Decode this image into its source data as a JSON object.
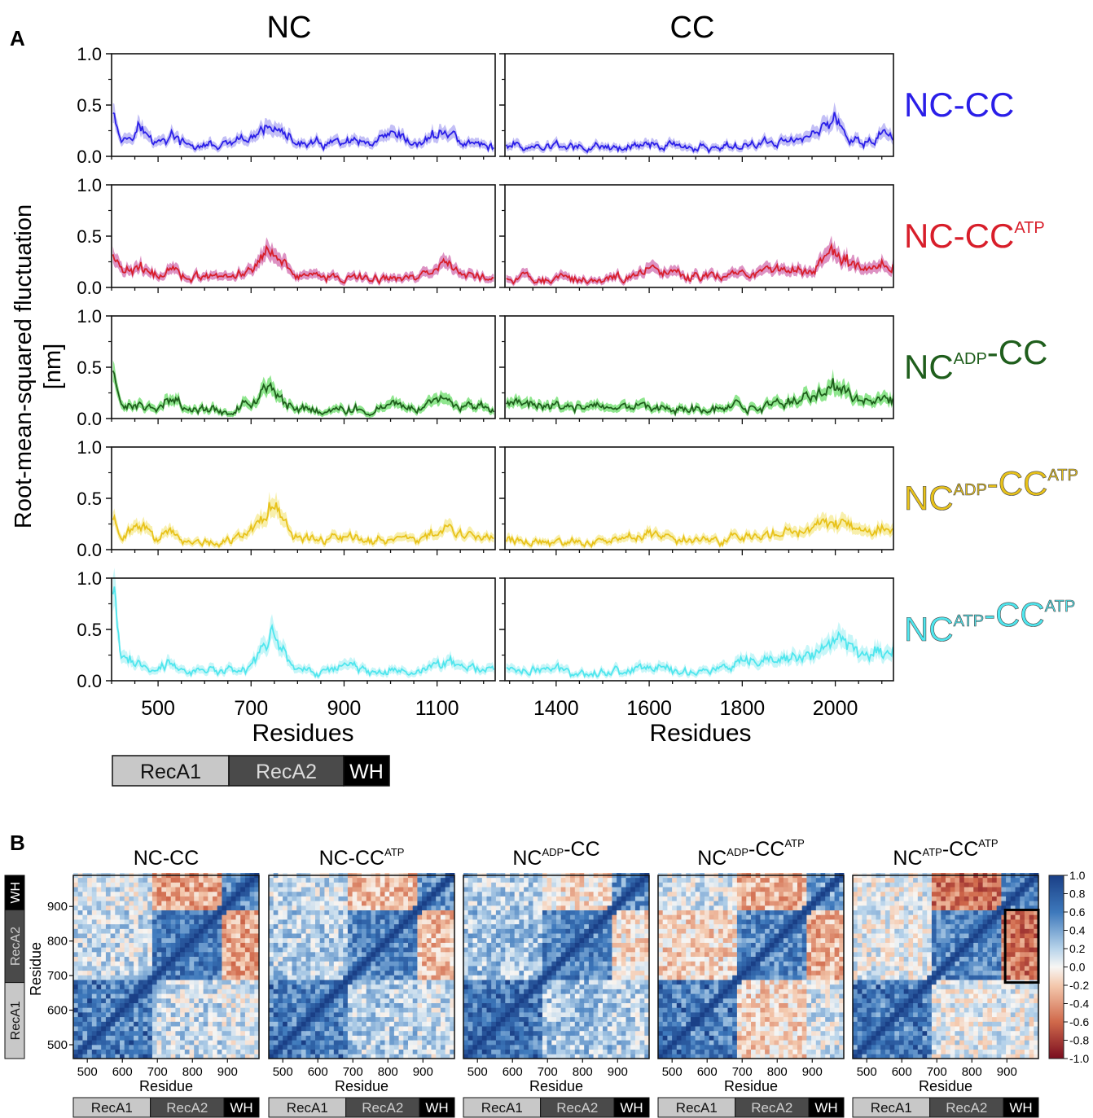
{
  "panel_a": {
    "letter": "A",
    "col_titles": [
      "NC",
      "CC"
    ],
    "ylabel_line1": "Root-mean-squared fluctuation",
    "ylabel_line2": "[nm]",
    "xlabel": "Residues",
    "y_ticks": [
      "1.0",
      "0.5",
      "0.0"
    ],
    "x_ticks_nc": [
      "500",
      "700",
      "900",
      "1100"
    ],
    "x_ticks_cc": [
      "1400",
      "1600",
      "1800",
      "2000"
    ],
    "rows": [
      {
        "base": "NC",
        "sup1": "",
        "mid": "-CC",
        "sup2": "",
        "color": "#2a1ee8",
        "band": "#b9b4f4"
      },
      {
        "base": "NC",
        "sup1": "",
        "mid": "-CC",
        "sup2": "ATP",
        "color": "#d81e2a",
        "band": "#d77fb8"
      },
      {
        "base": "NC",
        "sup1": "ADP",
        "mid": "-CC",
        "sup2": "",
        "color": "#1f5e1c",
        "band": "#7be27a"
      },
      {
        "base": "NC",
        "sup1": "ADP",
        "mid": "-CC",
        "sup2": "ATP",
        "color": "#e8c21a",
        "band": "#f7ec9e"
      },
      {
        "base": "NC",
        "sup1": "ATP",
        "mid": "-CC",
        "sup2": "ATP",
        "color": "#4fe6ee",
        "band": "#bdf5f7"
      }
    ],
    "domain_bar": [
      "RecA1",
      "RecA2",
      "WH"
    ]
  },
  "panel_b": {
    "letter": "B",
    "titles": [
      {
        "base": "NC",
        "sup1": "",
        "mid": "-CC",
        "sup2": ""
      },
      {
        "base": "NC",
        "sup1": "",
        "mid": "-CC",
        "sup2": "ATP"
      },
      {
        "base": "NC",
        "sup1": "ADP",
        "mid": "-CC",
        "sup2": ""
      },
      {
        "base": "NC",
        "sup1": "ADP",
        "mid": "-CC",
        "sup2": "ATP"
      },
      {
        "base": "NC",
        "sup1": "ATP",
        "mid": "-CC",
        "sup2": "ATP"
      }
    ],
    "xlabel": "Residue",
    "ylabel": "Residue",
    "ticks": [
      "500",
      "600",
      "700",
      "800",
      "900"
    ],
    "colorbar_ticks": [
      "1.0",
      "0.8",
      "0.6",
      "0.4",
      "0.2",
      "0.0",
      "-0.2",
      "-0.4",
      "-0.6",
      "-0.8",
      "-1.0"
    ],
    "domain_bar": [
      "RecA1",
      "RecA2",
      "WH"
    ],
    "side_bar": [
      "WH",
      "RecA2",
      "RecA1"
    ]
  },
  "chart_data": [
    {
      "type": "line",
      "panel": "A-NC",
      "xlabel": "Residues",
      "ylabel": "Root-mean-squared fluctuation [nm]",
      "xlim": [
        400,
        1225
      ],
      "ylim": [
        0,
        1.0
      ],
      "x": [
        405,
        420,
        460,
        490,
        530,
        560,
        600,
        650,
        700,
        745,
        790,
        850,
        910,
        960,
        1010,
        1050,
        1115,
        1160,
        1220
      ],
      "series": [
        {
          "name": "NC-CC",
          "values": [
            0.5,
            0.15,
            0.3,
            0.12,
            0.2,
            0.1,
            0.1,
            0.1,
            0.16,
            0.31,
            0.13,
            0.11,
            0.13,
            0.1,
            0.2,
            0.1,
            0.25,
            0.12,
            0.1
          ]
        },
        {
          "name": "NC-CCATP",
          "values": [
            0.3,
            0.16,
            0.18,
            0.12,
            0.17,
            0.1,
            0.1,
            0.09,
            0.17,
            0.4,
            0.13,
            0.1,
            0.1,
            0.08,
            0.1,
            0.09,
            0.22,
            0.12,
            0.1
          ]
        },
        {
          "name": "NCADP-CC",
          "values": [
            0.45,
            0.1,
            0.12,
            0.09,
            0.24,
            0.08,
            0.08,
            0.08,
            0.15,
            0.3,
            0.12,
            0.08,
            0.1,
            0.1,
            0.14,
            0.1,
            0.18,
            0.1,
            0.08
          ]
        },
        {
          "name": "NCADP-CCATP",
          "values": [
            0.3,
            0.15,
            0.22,
            0.12,
            0.2,
            0.1,
            0.09,
            0.1,
            0.18,
            0.48,
            0.14,
            0.1,
            0.11,
            0.1,
            0.13,
            0.1,
            0.2,
            0.12,
            0.1
          ]
        },
        {
          "name": "NCATP-CCATP",
          "values": [
            0.9,
            0.25,
            0.15,
            0.12,
            0.2,
            0.1,
            0.1,
            0.1,
            0.16,
            0.45,
            0.12,
            0.09,
            0.16,
            0.1,
            0.12,
            0.1,
            0.17,
            0.12,
            0.1
          ]
        }
      ]
    },
    {
      "type": "line",
      "panel": "A-CC",
      "xlabel": "Residues",
      "ylabel": "Root-mean-squared fluctuation [nm]",
      "xlim": [
        1290,
        2125
      ],
      "ylim": [
        0,
        1.0
      ],
      "x": [
        1295,
        1350,
        1400,
        1450,
        1500,
        1550,
        1600,
        1650,
        1700,
        1750,
        1800,
        1850,
        1900,
        1950,
        1995,
        2030,
        2060,
        2090,
        2120
      ],
      "series": [
        {
          "name": "NC-CC",
          "values": [
            0.12,
            0.09,
            0.1,
            0.09,
            0.08,
            0.09,
            0.14,
            0.1,
            0.09,
            0.09,
            0.11,
            0.13,
            0.16,
            0.2,
            0.38,
            0.2,
            0.12,
            0.2,
            0.2
          ]
        },
        {
          "name": "NC-CCATP",
          "values": [
            0.1,
            0.08,
            0.09,
            0.08,
            0.09,
            0.1,
            0.17,
            0.12,
            0.12,
            0.11,
            0.16,
            0.13,
            0.18,
            0.2,
            0.35,
            0.25,
            0.17,
            0.2,
            0.2
          ]
        },
        {
          "name": "NCADP-CC",
          "values": [
            0.16,
            0.11,
            0.12,
            0.1,
            0.1,
            0.1,
            0.15,
            0.1,
            0.1,
            0.09,
            0.12,
            0.12,
            0.16,
            0.2,
            0.34,
            0.22,
            0.15,
            0.18,
            0.18
          ]
        },
        {
          "name": "NCADP-CCATP",
          "values": [
            0.1,
            0.08,
            0.08,
            0.08,
            0.08,
            0.09,
            0.15,
            0.1,
            0.09,
            0.09,
            0.12,
            0.13,
            0.15,
            0.2,
            0.3,
            0.22,
            0.15,
            0.2,
            0.2
          ]
        },
        {
          "name": "NCATP-CCATP",
          "values": [
            0.12,
            0.1,
            0.11,
            0.09,
            0.09,
            0.1,
            0.16,
            0.09,
            0.1,
            0.11,
            0.15,
            0.18,
            0.22,
            0.24,
            0.4,
            0.35,
            0.25,
            0.3,
            0.3
          ]
        }
      ]
    },
    {
      "type": "heatmap",
      "panel": "B",
      "xlabel": "Residue",
      "ylabel": "Residue",
      "xlim": [
        460,
        990
      ],
      "ylim": [
        460,
        990
      ],
      "colorbar_range": [
        -1.0,
        1.0
      ],
      "domains": [
        {
          "name": "RecA1",
          "start": 460,
          "end": 680
        },
        {
          "name": "RecA2",
          "start": 680,
          "end": 890
        },
        {
          "name": "WH",
          "start": 890,
          "end": 990
        }
      ],
      "maps": [
        "NC-CC",
        "NC-CCATP",
        "NCADP-CC",
        "NCADP-CCATP",
        "NCATP-CCATP"
      ],
      "highlight_box": {
        "map": "NCATP-CCATP",
        "x_range": [
          895,
          990
        ],
        "y_range": [
          680,
          890
        ]
      }
    }
  ]
}
